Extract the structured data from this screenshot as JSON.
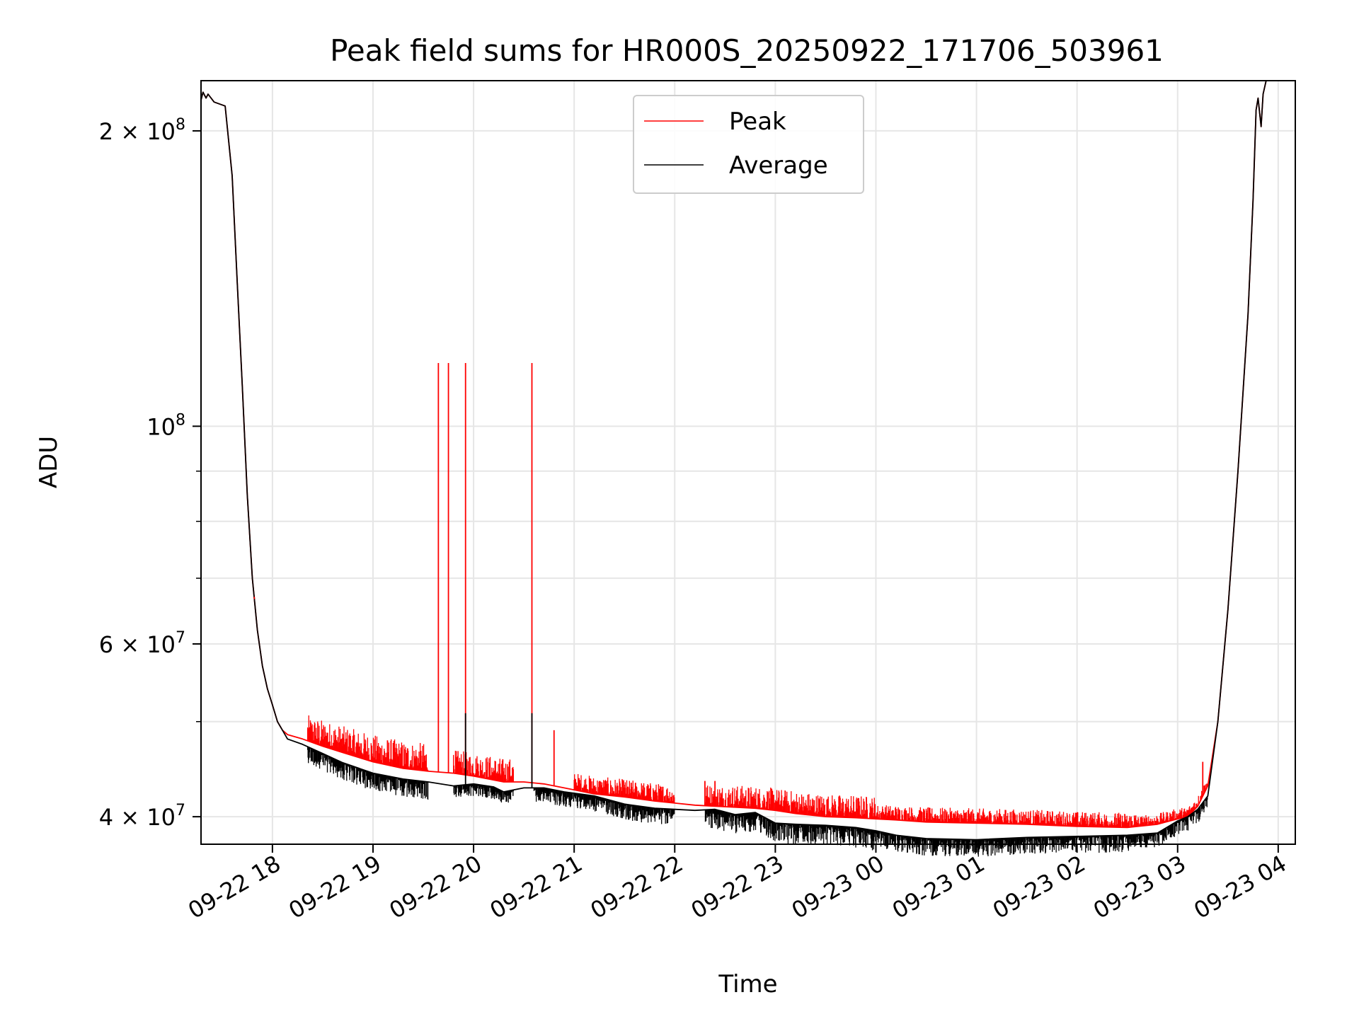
{
  "chart_data": {
    "type": "line",
    "title": "Peak field sums for HR000S_20250922_171706_503961",
    "xlabel": "Time",
    "ylabel": "ADU",
    "yscale": "log",
    "ylim": [
      37500000,
      225000000
    ],
    "xlim_hours": [
      -0.71,
      10.17
    ],
    "x_unit": "hours after 2025-09-22 18:00",
    "grid": true,
    "legend_position": "top-center",
    "colors": {
      "peak": "#ff0000",
      "average": "#000000",
      "grid": "#e6e6e6"
    },
    "xticks": [
      {
        "h": 0,
        "label": "09-22 18"
      },
      {
        "h": 1,
        "label": "09-22 19"
      },
      {
        "h": 2,
        "label": "09-22 20"
      },
      {
        "h": 3,
        "label": "09-22 21"
      },
      {
        "h": 4,
        "label": "09-22 22"
      },
      {
        "h": 5,
        "label": "09-22 23"
      },
      {
        "h": 6,
        "label": "09-23 00"
      },
      {
        "h": 7,
        "label": "09-23 01"
      },
      {
        "h": 8,
        "label": "09-23 02"
      },
      {
        "h": 9,
        "label": "09-23 03"
      },
      {
        "h": 10,
        "label": "09-23 04"
      }
    ],
    "yticks_major": [
      {
        "v": 40000000,
        "base": "4 × 10",
        "exp": "7"
      },
      {
        "v": 60000000,
        "base": "6 × 10",
        "exp": "7"
      },
      {
        "v": 100000000,
        "base": "10",
        "exp": "8"
      },
      {
        "v": 200000000,
        "base": "2 × 10",
        "exp": "8"
      }
    ],
    "yticks_minor": [
      50000000,
      70000000,
      80000000,
      90000000
    ],
    "series": [
      {
        "name": "Peak",
        "key": "peak",
        "x": [
          -0.71,
          -0.69,
          -0.66,
          -0.64,
          -0.58,
          -0.47,
          -0.4,
          -0.35,
          -0.3,
          -0.25,
          -0.2,
          -0.15,
          -0.1,
          -0.05,
          0.0,
          0.05,
          0.1,
          0.15,
          0.3,
          0.5,
          0.7,
          1.0,
          1.3,
          1.55,
          1.8,
          2.0,
          2.2,
          2.3,
          2.5,
          2.7,
          2.9,
          3.2,
          3.5,
          3.8,
          4.0,
          4.2,
          4.4,
          4.6,
          4.8,
          5.0,
          5.2,
          5.5,
          5.8,
          6.0,
          6.2,
          6.5,
          7.0,
          7.5,
          8.0,
          8.5,
          8.8,
          9.0,
          9.1,
          9.2,
          9.3,
          9.4,
          9.5,
          9.6,
          9.7,
          9.75,
          9.78,
          9.8,
          9.83,
          9.85,
          9.88,
          9.92
        ],
        "y": [
          215000000,
          219000000,
          216000000,
          218000000,
          214000000,
          212000000,
          180000000,
          140000000,
          110000000,
          85000000,
          70000000,
          62000000,
          57000000,
          54000000,
          52000000,
          50000000,
          49000000,
          48500000,
          48000000,
          47200000,
          46500000,
          45500000,
          44800000,
          44500000,
          44300000,
          44000000,
          43600000,
          43400000,
          43400000,
          43200000,
          42800000,
          42200000,
          41900000,
          41500000,
          41300000,
          41100000,
          41000000,
          40900000,
          40800000,
          40600000,
          40300000,
          40000000,
          39900000,
          39800000,
          39700000,
          39500000,
          39400000,
          39300000,
          39100000,
          39000000,
          39300000,
          39800000,
          40000000,
          41000000,
          43000000,
          50000000,
          65000000,
          90000000,
          130000000,
          170000000,
          210000000,
          216000000,
          202000000,
          218000000,
          226000000,
          228000000
        ]
      },
      {
        "name": "Average",
        "key": "average",
        "x": [
          -0.71,
          -0.69,
          -0.66,
          -0.64,
          -0.58,
          -0.47,
          -0.4,
          -0.35,
          -0.3,
          -0.25,
          -0.2,
          -0.15,
          -0.1,
          -0.05,
          0.0,
          0.05,
          0.1,
          0.15,
          0.3,
          0.5,
          0.7,
          1.0,
          1.3,
          1.55,
          1.8,
          2.0,
          2.2,
          2.3,
          2.5,
          2.7,
          2.9,
          3.2,
          3.5,
          3.8,
          4.0,
          4.2,
          4.4,
          4.6,
          4.8,
          5.0,
          5.2,
          5.5,
          5.8,
          6.0,
          6.2,
          6.5,
          7.0,
          7.5,
          8.0,
          8.5,
          8.8,
          9.0,
          9.1,
          9.2,
          9.3,
          9.4,
          9.5,
          9.6,
          9.7,
          9.75,
          9.78,
          9.8,
          9.83,
          9.85,
          9.88,
          9.92
        ],
        "y": [
          215000000,
          219000000,
          216000000,
          218000000,
          214000000,
          212000000,
          180000000,
          140000000,
          110000000,
          85000000,
          70000000,
          62000000,
          57000000,
          54000000,
          52000000,
          50000000,
          49000000,
          48000000,
          47400000,
          46400000,
          45400000,
          44300000,
          43700000,
          43400000,
          43000000,
          43200000,
          42900000,
          42400000,
          42800000,
          42800000,
          42400000,
          42000000,
          41200000,
          40800000,
          40700000,
          40600000,
          40700000,
          40200000,
          40400000,
          39400000,
          39300000,
          39200000,
          39000000,
          38700000,
          38300000,
          38000000,
          37900000,
          38100000,
          38200000,
          38300000,
          38500000,
          39600000,
          40000000,
          40700000,
          42000000,
          50000000,
          65000000,
          90000000,
          130000000,
          170000000,
          210000000,
          216000000,
          202000000,
          218000000,
          226000000,
          228000000
        ]
      }
    ],
    "spikes": [
      {
        "h": 1.65,
        "value": 116000000,
        "series": "peak"
      },
      {
        "h": 1.75,
        "value": 116000000,
        "series": "peak"
      },
      {
        "h": 1.92,
        "value": 116000000,
        "series": "peak"
      },
      {
        "h": 2.58,
        "value": 116000000,
        "series": "peak"
      },
      {
        "h": 1.92,
        "value": 51000000,
        "series": "average"
      },
      {
        "h": 2.58,
        "value": 51000000,
        "series": "average"
      },
      {
        "h": 2.8,
        "value": 49000000,
        "series": "peak"
      },
      {
        "h": 9.25,
        "value": 45500000,
        "series": "peak"
      },
      {
        "h": 4.3,
        "value": 43500000,
        "series": "peak"
      },
      {
        "h": 4.4,
        "value": 43500000,
        "series": "peak"
      },
      {
        "h": -0.18,
        "value": 67000000,
        "series": "peak"
      }
    ],
    "noise": {
      "peak_band": [
        [
          0.35,
          1.55,
          3000000
        ],
        [
          1.8,
          2.4,
          2500000
        ],
        [
          3.0,
          4.0,
          1800000
        ],
        [
          4.3,
          6.0,
          2200000
        ],
        [
          6.0,
          8.6,
          1400000
        ],
        [
          8.6,
          9.3,
          1000000
        ]
      ],
      "average_band": [
        [
          0.35,
          1.55,
          1800000
        ],
        [
          1.8,
          2.4,
          1200000
        ],
        [
          2.6,
          4.0,
          1500000
        ],
        [
          4.3,
          6.0,
          1800000
        ],
        [
          6.0,
          8.6,
          1500000
        ],
        [
          8.6,
          9.3,
          1300000
        ]
      ]
    }
  }
}
